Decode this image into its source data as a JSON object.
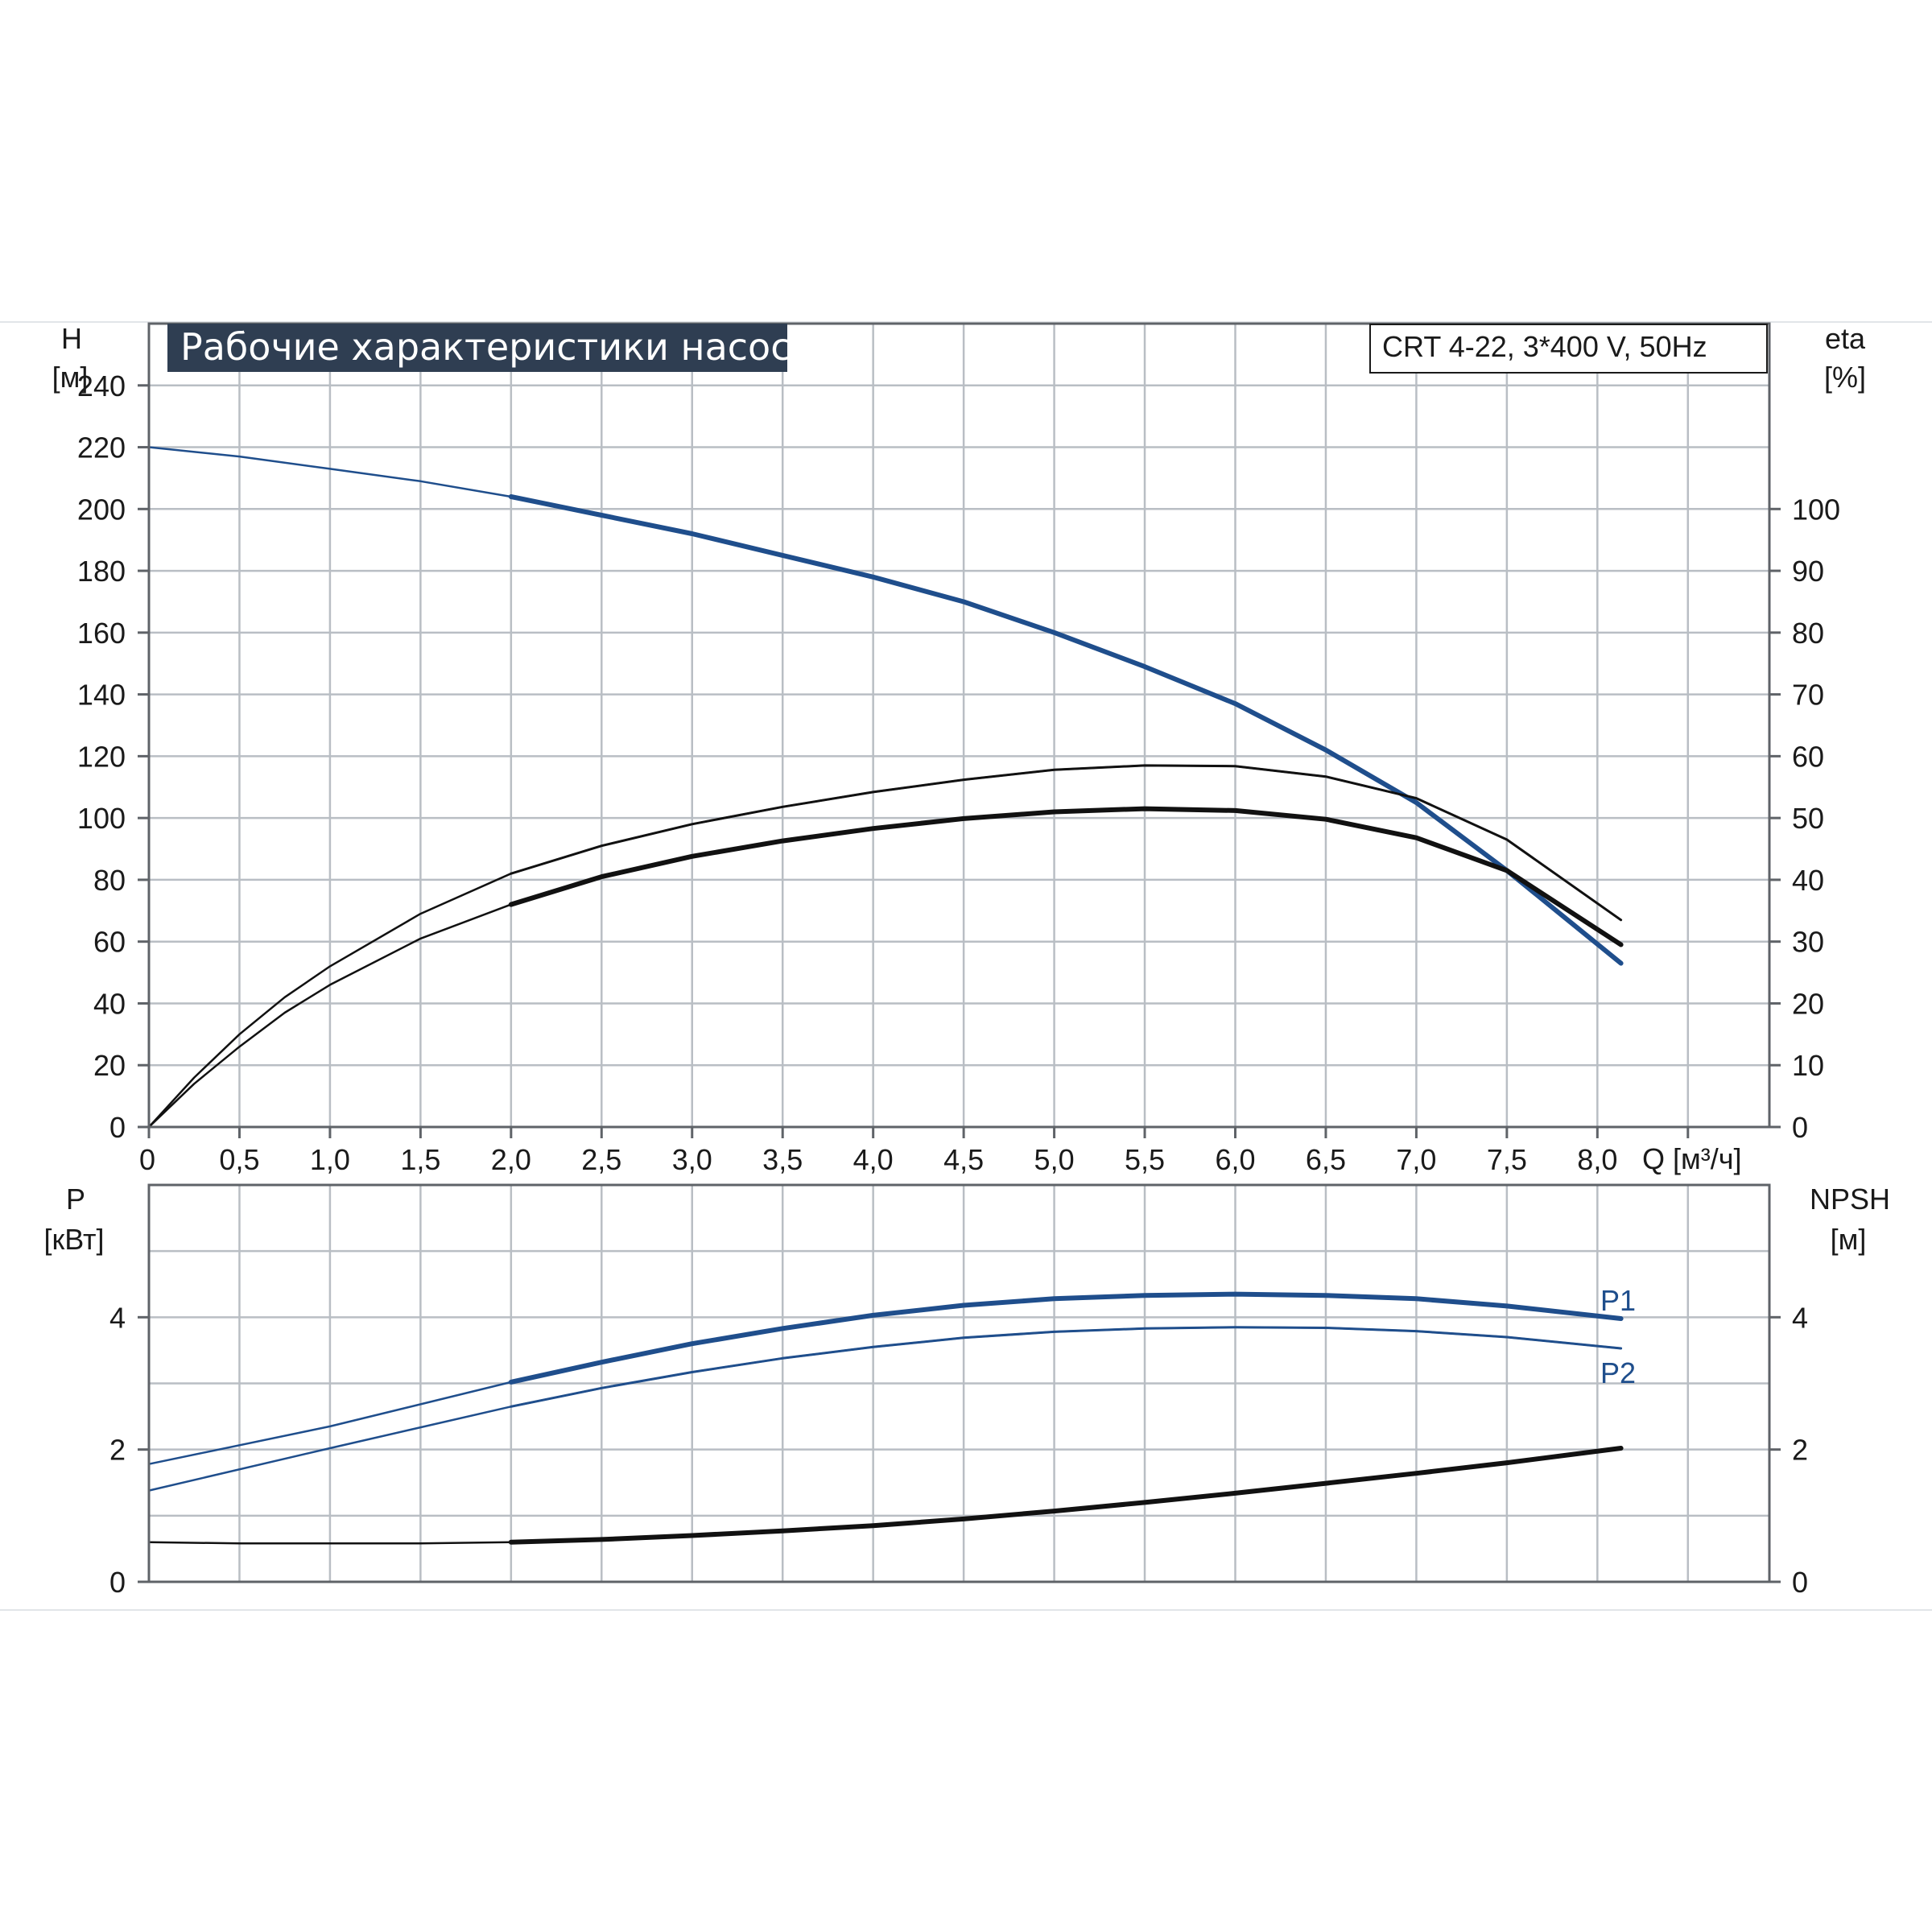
{
  "header": {
    "title": "Рабочие характеристики насоса",
    "model": "CRT 4-22, 3*400 V, 50Hz"
  },
  "colors": {
    "grid": "#b9bec4",
    "frame": "#5f6368",
    "title_bg": "#2f3e52",
    "blue": "#1f4e8c",
    "black": "#111111"
  },
  "chart_data": [
    {
      "type": "line",
      "name": "upper",
      "xlabel": "Q [м³/ч]",
      "x_ticks": [
        "0",
        "0,5",
        "1,0",
        "1,5",
        "2,0",
        "2,5",
        "3,0",
        "3,5",
        "4,0",
        "4,5",
        "5,0",
        "5,5",
        "6,0",
        "6,5",
        "7,0",
        "7,5",
        "8,0"
      ],
      "xlim": [
        0,
        8.95
      ],
      "y_left": {
        "label": [
          "H",
          "[м]"
        ],
        "ticks": [
          "0",
          "20",
          "40",
          "60",
          "80",
          "100",
          "120",
          "140",
          "160",
          "180",
          "200",
          "220",
          "240"
        ],
        "lim": [
          0,
          260
        ]
      },
      "y_right": {
        "label": [
          "eta",
          "[%]"
        ],
        "ticks": [
          "0",
          "10",
          "20",
          "30",
          "40",
          "50",
          "60",
          "70",
          "80",
          "90",
          "100"
        ],
        "lim": [
          0,
          130
        ]
      },
      "grid": true,
      "series": [
        {
          "key": "H",
          "axis": "left",
          "color": "#1f4e8c",
          "x": [
            0,
            0.5,
            1.0,
            1.5,
            2.0,
            2.5,
            3.0,
            3.5,
            4.0,
            4.5,
            5.0,
            5.5,
            6.0,
            6.5,
            7.0,
            7.5,
            8.13
          ],
          "y": [
            220,
            217,
            213,
            209,
            204,
            198,
            192,
            185,
            178,
            170,
            160,
            149,
            137,
            122,
            105,
            83,
            53
          ]
        },
        {
          "key": "eta-thin",
          "axis": "right",
          "color": "#111111",
          "x": [
            0,
            0.25,
            0.5,
            0.75,
            1.0,
            1.5,
            2.0,
            2.5,
            3.0,
            3.5,
            4.0,
            4.5,
            5.0,
            5.5,
            6.0,
            6.5,
            7.0,
            7.5,
            8.13
          ],
          "y": [
            0,
            8,
            15,
            21,
            26,
            34.5,
            41,
            45.5,
            49,
            51.8,
            54.2,
            56.2,
            57.8,
            58.5,
            58.4,
            56.7,
            53.2,
            46.5,
            33.5
          ]
        },
        {
          "key": "eta-thick",
          "axis": "right",
          "color": "#111111",
          "x": [
            0,
            0.25,
            0.5,
            0.75,
            1.0,
            1.5,
            2.0,
            2.5,
            3.0,
            3.5,
            4.0,
            4.5,
            5.0,
            5.5,
            6.0,
            6.5,
            7.0,
            7.5,
            8.13
          ],
          "y": [
            0,
            7,
            13,
            18.5,
            23,
            30.5,
            36,
            40.5,
            43.8,
            46.3,
            48.3,
            49.9,
            51,
            51.5,
            51.2,
            49.8,
            46.8,
            41.5,
            29.5
          ]
        }
      ]
    },
    {
      "type": "line",
      "name": "lower",
      "xlim": [
        0,
        8.95
      ],
      "y_left": {
        "label": [
          "P",
          "[кВт]"
        ],
        "ticks": [
          "0",
          "2",
          "4"
        ],
        "lim": [
          0,
          6
        ]
      },
      "y_right": {
        "label": [
          "NPSH",
          "[м]"
        ],
        "ticks": [
          "0",
          "2",
          "4"
        ],
        "lim": [
          0,
          6
        ]
      },
      "grid": true,
      "series": [
        {
          "key": "P1",
          "name": "P1",
          "axis": "left",
          "color": "#1f4e8c",
          "x": [
            0,
            1.0,
            2.0,
            2.5,
            3.0,
            3.5,
            4.0,
            4.5,
            5.0,
            5.5,
            6.0,
            6.5,
            7.0,
            7.5,
            8.13
          ],
          "y": [
            1.78,
            2.35,
            3.02,
            3.32,
            3.6,
            3.83,
            4.03,
            4.18,
            4.28,
            4.33,
            4.35,
            4.33,
            4.28,
            4.17,
            3.98
          ]
        },
        {
          "key": "P2",
          "name": "P2",
          "axis": "left",
          "color": "#1f4e8c",
          "x": [
            0,
            1.0,
            2.0,
            2.5,
            3.0,
            3.5,
            4.0,
            4.5,
            5.0,
            5.5,
            6.0,
            6.5,
            7.0,
            7.5,
            8.13
          ],
          "y": [
            1.38,
            2.02,
            2.65,
            2.93,
            3.17,
            3.38,
            3.55,
            3.69,
            3.78,
            3.83,
            3.85,
            3.84,
            3.79,
            3.7,
            3.53
          ]
        },
        {
          "key": "NPSH",
          "axis": "right",
          "color": "#111111",
          "x": [
            0,
            0.5,
            1.0,
            1.5,
            2.0,
            2.5,
            3.0,
            3.5,
            4.0,
            4.5,
            5.0,
            5.5,
            6.0,
            6.5,
            7.0,
            7.5,
            8.13
          ],
          "y": [
            0.6,
            0.58,
            0.58,
            0.58,
            0.6,
            0.64,
            0.7,
            0.77,
            0.85,
            0.95,
            1.07,
            1.2,
            1.34,
            1.49,
            1.64,
            1.8,
            2.02
          ]
        }
      ]
    }
  ]
}
